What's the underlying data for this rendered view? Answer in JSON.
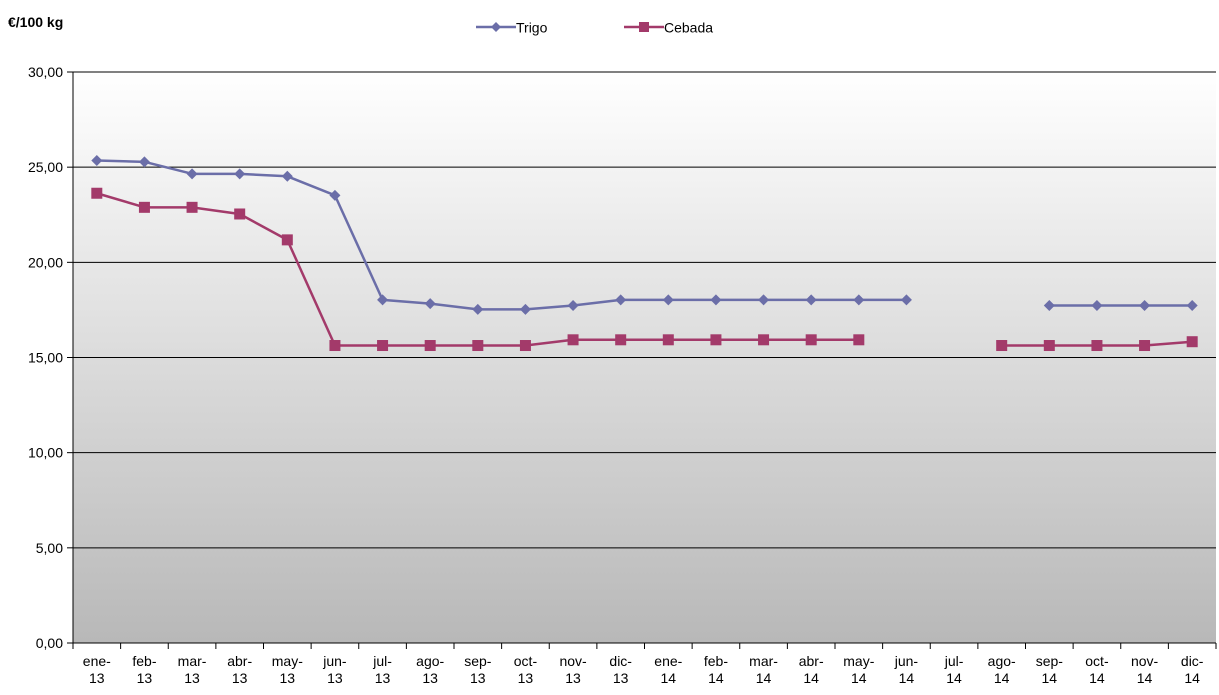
{
  "chart_data": {
    "type": "line",
    "ylabel": "€/100 kg",
    "ylim": [
      0,
      30
    ],
    "yticks": [
      "0,00",
      "5,00",
      "10,00",
      "15,00",
      "20,00",
      "25,00",
      "30,00"
    ],
    "grid": true,
    "legend_position": "top-center",
    "categories": [
      "ene-13",
      "feb-13",
      "mar-13",
      "abr-13",
      "may-13",
      "jun-13",
      "jul-13",
      "ago-13",
      "sep-13",
      "oct-13",
      "nov-13",
      "dic-13",
      "ene-14",
      "feb-14",
      "mar-14",
      "abr-14",
      "may-14",
      "jun-14",
      "jul-14",
      "ago-14",
      "sep-14",
      "oct-14",
      "nov-14",
      "dic-14"
    ],
    "series": [
      {
        "name": "Trigo",
        "color": "#6b6ea8",
        "marker": "diamond",
        "values": [
          25.35,
          25.28,
          24.65,
          24.65,
          24.52,
          23.52,
          18.03,
          17.83,
          17.53,
          17.53,
          17.73,
          18.03,
          18.03,
          18.03,
          18.03,
          18.03,
          18.03,
          18.03,
          null,
          null,
          17.73,
          17.73,
          17.73,
          17.73
        ]
      },
      {
        "name": "Cebada",
        "color": "#a33a6a",
        "marker": "square",
        "values": [
          23.63,
          22.89,
          22.89,
          22.54,
          21.18,
          15.63,
          15.63,
          15.63,
          15.63,
          15.63,
          15.93,
          15.93,
          15.93,
          15.93,
          15.93,
          15.93,
          15.93,
          null,
          null,
          15.63,
          15.63,
          15.63,
          15.63,
          15.83
        ]
      }
    ]
  }
}
